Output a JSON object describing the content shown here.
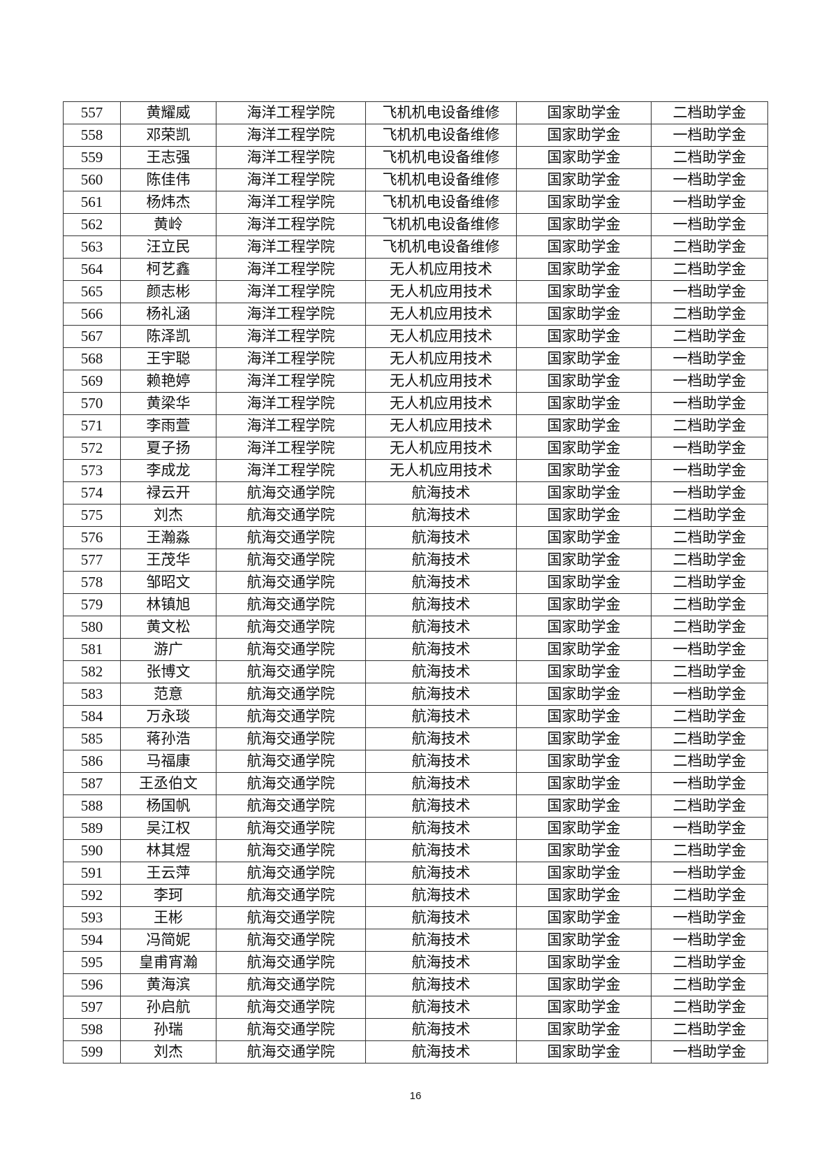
{
  "rows": [
    [
      "557",
      "黄耀威",
      "海洋工程学院",
      "飞机机电设备维修",
      "国家助学金",
      "二档助学金"
    ],
    [
      "558",
      "邓荣凯",
      "海洋工程学院",
      "飞机机电设备维修",
      "国家助学金",
      "一档助学金"
    ],
    [
      "559",
      "王志强",
      "海洋工程学院",
      "飞机机电设备维修",
      "国家助学金",
      "二档助学金"
    ],
    [
      "560",
      "陈佳伟",
      "海洋工程学院",
      "飞机机电设备维修",
      "国家助学金",
      "一档助学金"
    ],
    [
      "561",
      "杨炜杰",
      "海洋工程学院",
      "飞机机电设备维修",
      "国家助学金",
      "一档助学金"
    ],
    [
      "562",
      "黄岭",
      "海洋工程学院",
      "飞机机电设备维修",
      "国家助学金",
      "一档助学金"
    ],
    [
      "563",
      "汪立民",
      "海洋工程学院",
      "飞机机电设备维修",
      "国家助学金",
      "二档助学金"
    ],
    [
      "564",
      "柯艺鑫",
      "海洋工程学院",
      "无人机应用技术",
      "国家助学金",
      "二档助学金"
    ],
    [
      "565",
      "颜志彬",
      "海洋工程学院",
      "无人机应用技术",
      "国家助学金",
      "一档助学金"
    ],
    [
      "566",
      "杨礼涵",
      "海洋工程学院",
      "无人机应用技术",
      "国家助学金",
      "二档助学金"
    ],
    [
      "567",
      "陈泽凯",
      "海洋工程学院",
      "无人机应用技术",
      "国家助学金",
      "二档助学金"
    ],
    [
      "568",
      "王宇聪",
      "海洋工程学院",
      "无人机应用技术",
      "国家助学金",
      "一档助学金"
    ],
    [
      "569",
      "赖艳婷",
      "海洋工程学院",
      "无人机应用技术",
      "国家助学金",
      "一档助学金"
    ],
    [
      "570",
      "黄梁华",
      "海洋工程学院",
      "无人机应用技术",
      "国家助学金",
      "一档助学金"
    ],
    [
      "571",
      "李雨萱",
      "海洋工程学院",
      "无人机应用技术",
      "国家助学金",
      "二档助学金"
    ],
    [
      "572",
      "夏子扬",
      "海洋工程学院",
      "无人机应用技术",
      "国家助学金",
      "一档助学金"
    ],
    [
      "573",
      "李成龙",
      "海洋工程学院",
      "无人机应用技术",
      "国家助学金",
      "一档助学金"
    ],
    [
      "574",
      "禄云开",
      "航海交通学院",
      "航海技术",
      "国家助学金",
      "一档助学金"
    ],
    [
      "575",
      "刘杰",
      "航海交通学院",
      "航海技术",
      "国家助学金",
      "二档助学金"
    ],
    [
      "576",
      "王瀚淼",
      "航海交通学院",
      "航海技术",
      "国家助学金",
      "二档助学金"
    ],
    [
      "577",
      "王茂华",
      "航海交通学院",
      "航海技术",
      "国家助学金",
      "二档助学金"
    ],
    [
      "578",
      "邹昭文",
      "航海交通学院",
      "航海技术",
      "国家助学金",
      "二档助学金"
    ],
    [
      "579",
      "林镇旭",
      "航海交通学院",
      "航海技术",
      "国家助学金",
      "二档助学金"
    ],
    [
      "580",
      "黄文松",
      "航海交通学院",
      "航海技术",
      "国家助学金",
      "二档助学金"
    ],
    [
      "581",
      "游广",
      "航海交通学院",
      "航海技术",
      "国家助学金",
      "一档助学金"
    ],
    [
      "582",
      "张博文",
      "航海交通学院",
      "航海技术",
      "国家助学金",
      "二档助学金"
    ],
    [
      "583",
      "范意",
      "航海交通学院",
      "航海技术",
      "国家助学金",
      "一档助学金"
    ],
    [
      "584",
      "万永琰",
      "航海交通学院",
      "航海技术",
      "国家助学金",
      "二档助学金"
    ],
    [
      "585",
      "蒋孙浩",
      "航海交通学院",
      "航海技术",
      "国家助学金",
      "二档助学金"
    ],
    [
      "586",
      "马福康",
      "航海交通学院",
      "航海技术",
      "国家助学金",
      "二档助学金"
    ],
    [
      "587",
      "王丞伯文",
      "航海交通学院",
      "航海技术",
      "国家助学金",
      "一档助学金"
    ],
    [
      "588",
      "杨国帆",
      "航海交通学院",
      "航海技术",
      "国家助学金",
      "二档助学金"
    ],
    [
      "589",
      "吴江权",
      "航海交通学院",
      "航海技术",
      "国家助学金",
      "一档助学金"
    ],
    [
      "590",
      "林其煜",
      "航海交通学院",
      "航海技术",
      "国家助学金",
      "二档助学金"
    ],
    [
      "591",
      "王云萍",
      "航海交通学院",
      "航海技术",
      "国家助学金",
      "一档助学金"
    ],
    [
      "592",
      "李珂",
      "航海交通学院",
      "航海技术",
      "国家助学金",
      "二档助学金"
    ],
    [
      "593",
      "王彬",
      "航海交通学院",
      "航海技术",
      "国家助学金",
      "一档助学金"
    ],
    [
      "594",
      "冯简妮",
      "航海交通学院",
      "航海技术",
      "国家助学金",
      "一档助学金"
    ],
    [
      "595",
      "皇甫宵瀚",
      "航海交通学院",
      "航海技术",
      "国家助学金",
      "二档助学金"
    ],
    [
      "596",
      "黄海滨",
      "航海交通学院",
      "航海技术",
      "国家助学金",
      "二档助学金"
    ],
    [
      "597",
      "孙启航",
      "航海交通学院",
      "航海技术",
      "国家助学金",
      "二档助学金"
    ],
    [
      "598",
      "孙瑞",
      "航海交通学院",
      "航海技术",
      "国家助学金",
      "二档助学金"
    ],
    [
      "599",
      "刘杰",
      "航海交通学院",
      "航海技术",
      "国家助学金",
      "一档助学金"
    ]
  ],
  "page_number": "16"
}
